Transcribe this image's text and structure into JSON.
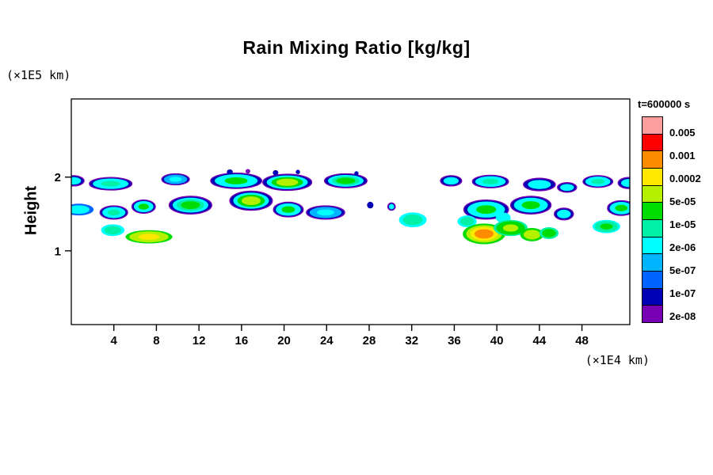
{
  "chart_data": {
    "type": "filled-contour",
    "title": "Rain Mixing Ratio [kg/kg]",
    "time_label": "t=600000 s",
    "x_axis": {
      "unit_label": "(×1E4 km)",
      "tick_values": [
        4,
        8,
        12,
        16,
        20,
        24,
        28,
        32,
        36,
        40,
        44,
        48
      ],
      "range": [
        0,
        52.5
      ]
    },
    "y_axis": {
      "label": "Height",
      "unit_label": "(×1E5 km)",
      "tick_values": [
        1,
        2
      ],
      "range": [
        0,
        3.06
      ]
    },
    "legend": {
      "labels": [
        "0.005",
        "0.001",
        "0.0002",
        "5e-05",
        "1e-05",
        "2e-06",
        "5e-07",
        "1e-07",
        "2e-08"
      ],
      "colors": [
        "#ff9e9e",
        "#ff0000",
        "#ff8c00",
        "#ffe800",
        "#b4f000",
        "#00dc00",
        "#00f0a8",
        "#00ffff",
        "#00b4ff",
        "#0064ff",
        "#0000b4",
        "#7800b4"
      ]
    },
    "palette": {
      "pink": "#ff9e9e",
      "red": "#ff0000",
      "orange": "#ff8c00",
      "yellow": "#ffe800",
      "chart": "#b4f000",
      "green": "#00dc00",
      "teal": "#00f0a8",
      "cyan": "#00ffff",
      "lblue": "#00b4ff",
      "blue": "#0064ff",
      "navy": "#0000b4",
      "purple": "#7800b4"
    },
    "blobs": [
      {
        "x": 0.2,
        "y": 1.95,
        "rx": 1.0,
        "ry": 0.07,
        "layers": [
          "navy",
          "cyan"
        ]
      },
      {
        "x": 3.7,
        "y": 1.91,
        "rx": 2.0,
        "ry": 0.085,
        "layers": [
          "navy",
          "cyan",
          "teal"
        ]
      },
      {
        "x": 9.8,
        "y": 1.97,
        "rx": 1.3,
        "ry": 0.075,
        "layers": [
          "navy",
          "lblue",
          "cyan"
        ]
      },
      {
        "x": 15.5,
        "y": 1.95,
        "rx": 2.4,
        "ry": 0.105,
        "layers": [
          "navy",
          "cyan",
          "green"
        ]
      },
      {
        "x": 20.3,
        "y": 1.93,
        "rx": 2.3,
        "ry": 0.11,
        "layers": [
          "navy",
          "cyan",
          "green",
          "chart"
        ]
      },
      {
        "x": 25.8,
        "y": 1.95,
        "rx": 2.0,
        "ry": 0.095,
        "layers": [
          "navy",
          "cyan",
          "teal",
          "green"
        ]
      },
      {
        "x": 14.9,
        "y": 2.07,
        "rx": 0.28,
        "ry": 0.035,
        "layers": [
          "navy"
        ]
      },
      {
        "x": 16.6,
        "y": 2.08,
        "rx": 0.22,
        "ry": 0.03,
        "layers": [
          "purple"
        ]
      },
      {
        "x": 19.2,
        "y": 2.06,
        "rx": 0.26,
        "ry": 0.035,
        "layers": [
          "navy"
        ]
      },
      {
        "x": 21.3,
        "y": 2.07,
        "rx": 0.2,
        "ry": 0.03,
        "layers": [
          "navy"
        ]
      },
      {
        "x": 26.8,
        "y": 2.05,
        "rx": 0.2,
        "ry": 0.03,
        "layers": [
          "navy"
        ]
      },
      {
        "x": 35.7,
        "y": 1.95,
        "rx": 1.0,
        "ry": 0.07,
        "layers": [
          "navy",
          "cyan"
        ]
      },
      {
        "x": 39.4,
        "y": 1.94,
        "rx": 1.7,
        "ry": 0.085,
        "layers": [
          "navy",
          "cyan",
          "teal"
        ]
      },
      {
        "x": 44.0,
        "y": 1.9,
        "rx": 1.5,
        "ry": 0.085,
        "layers": [
          "navy",
          "cyan"
        ]
      },
      {
        "x": 46.6,
        "y": 1.86,
        "rx": 0.9,
        "ry": 0.065,
        "layers": [
          "navy",
          "cyan"
        ]
      },
      {
        "x": 49.5,
        "y": 1.94,
        "rx": 1.4,
        "ry": 0.08,
        "layers": [
          "navy",
          "cyan",
          "teal"
        ]
      },
      {
        "x": 52.4,
        "y": 1.92,
        "rx": 1.0,
        "ry": 0.075,
        "layers": [
          "navy",
          "cyan"
        ]
      },
      {
        "x": 0.7,
        "y": 1.56,
        "rx": 1.4,
        "ry": 0.08,
        "layers": [
          "blue",
          "cyan"
        ]
      },
      {
        "x": 4.0,
        "y": 1.52,
        "rx": 1.3,
        "ry": 0.09,
        "layers": [
          "navy",
          "cyan",
          "teal"
        ]
      },
      {
        "x": 6.8,
        "y": 1.6,
        "rx": 1.1,
        "ry": 0.09,
        "layers": [
          "navy",
          "cyan",
          "green"
        ]
      },
      {
        "x": 11.2,
        "y": 1.62,
        "rx": 2.0,
        "ry": 0.12,
        "layers": [
          "navy",
          "cyan",
          "teal",
          "green"
        ]
      },
      {
        "x": 16.9,
        "y": 1.68,
        "rx": 2.0,
        "ry": 0.13,
        "layers": [
          "navy",
          "cyan",
          "green",
          "chart"
        ]
      },
      {
        "x": 20.4,
        "y": 1.56,
        "rx": 1.4,
        "ry": 0.1,
        "layers": [
          "navy",
          "cyan",
          "green"
        ]
      },
      {
        "x": 23.9,
        "y": 1.52,
        "rx": 1.8,
        "ry": 0.09,
        "layers": [
          "navy",
          "lblue",
          "cyan"
        ]
      },
      {
        "x": 28.1,
        "y": 1.62,
        "rx": 0.3,
        "ry": 0.045,
        "layers": [
          "navy"
        ]
      },
      {
        "x": 30.1,
        "y": 1.6,
        "rx": 0.35,
        "ry": 0.05,
        "layers": [
          "navy",
          "cyan"
        ]
      },
      {
        "x": 32.1,
        "y": 1.42,
        "rx": 1.3,
        "ry": 0.1,
        "layers": [
          "cyan",
          "teal"
        ]
      },
      {
        "x": 39.0,
        "y": 1.56,
        "rx": 2.1,
        "ry": 0.13,
        "layers": [
          "navy",
          "cyan",
          "green"
        ]
      },
      {
        "x": 43.2,
        "y": 1.62,
        "rx": 1.9,
        "ry": 0.12,
        "layers": [
          "navy",
          "cyan",
          "green"
        ]
      },
      {
        "x": 46.3,
        "y": 1.5,
        "rx": 0.9,
        "ry": 0.08,
        "layers": [
          "navy",
          "cyan"
        ]
      },
      {
        "x": 51.7,
        "y": 1.58,
        "rx": 1.3,
        "ry": 0.1,
        "layers": [
          "navy",
          "cyan",
          "green"
        ]
      },
      {
        "x": 3.9,
        "y": 1.28,
        "rx": 1.1,
        "ry": 0.08,
        "layers": [
          "cyan",
          "teal"
        ]
      },
      {
        "x": 7.3,
        "y": 1.19,
        "rx": 2.2,
        "ry": 0.09,
        "layers": [
          "green",
          "chart",
          "yellow"
        ]
      },
      {
        "x": 37.2,
        "y": 1.4,
        "rx": 0.9,
        "ry": 0.08,
        "layers": [
          "cyan",
          "teal"
        ]
      },
      {
        "x": 40.6,
        "y": 1.45,
        "rx": 0.7,
        "ry": 0.07,
        "layers": [
          "cyan"
        ]
      },
      {
        "x": 38.8,
        "y": 1.23,
        "rx": 2.0,
        "ry": 0.14,
        "layers": [
          "green",
          "chart",
          "yellow",
          "orange"
        ]
      },
      {
        "x": 41.3,
        "y": 1.31,
        "rx": 1.6,
        "ry": 0.11,
        "layers": [
          "teal",
          "green",
          "chart"
        ]
      },
      {
        "x": 43.3,
        "y": 1.22,
        "rx": 1.1,
        "ry": 0.09,
        "layers": [
          "green",
          "chart"
        ]
      },
      {
        "x": 44.9,
        "y": 1.24,
        "rx": 0.9,
        "ry": 0.08,
        "layers": [
          "teal",
          "green"
        ]
      },
      {
        "x": 50.3,
        "y": 1.33,
        "rx": 1.3,
        "ry": 0.09,
        "layers": [
          "cyan",
          "teal",
          "green"
        ]
      }
    ]
  }
}
